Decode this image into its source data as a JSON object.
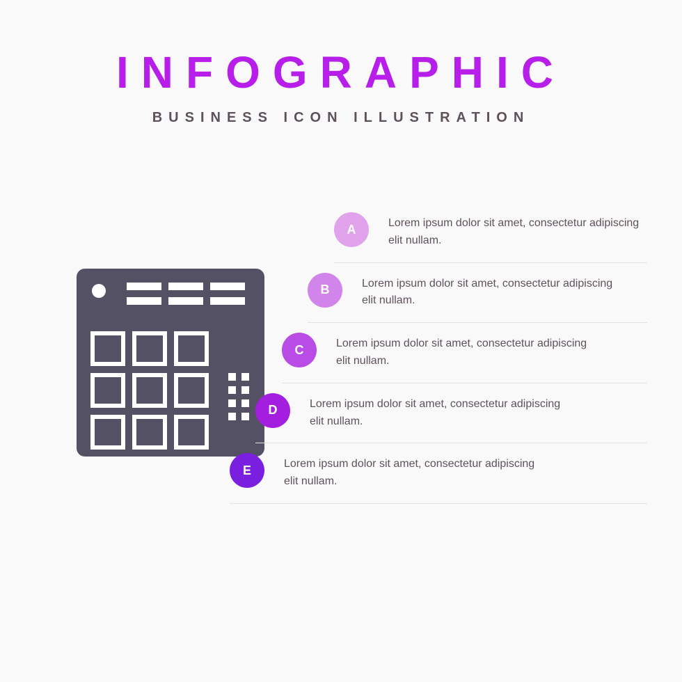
{
  "header": {
    "title": "INFOGRAPHIC",
    "title_color": "#b71eea",
    "subtitle": "BUSINESS ICON ILLUSTRATION",
    "subtitle_color": "#5d525c"
  },
  "icon": {
    "bg_color": "#545165"
  },
  "steps": [
    {
      "letter": "A",
      "color": "#e1a2ec",
      "text": "Lorem ipsum dolor sit amet, consectetur adipiscing elit nullam."
    },
    {
      "letter": "B",
      "color": "#d184e9",
      "text": "Lorem ipsum dolor sit amet, consectetur adipiscing elit nullam."
    },
    {
      "letter": "C",
      "color": "#b94ce4",
      "text": "Lorem ipsum dolor sit amet, consectetur adipiscing elit nullam."
    },
    {
      "letter": "D",
      "color": "#a41ee0",
      "text": "Lorem ipsum dolor sit amet, consectetur adipiscing elit nullam."
    },
    {
      "letter": "E",
      "color": "#7a1ee0",
      "text": "Lorem ipsum dolor sit amet, consectetur adipiscing elit nullam."
    }
  ],
  "text_color": "#5d525c"
}
